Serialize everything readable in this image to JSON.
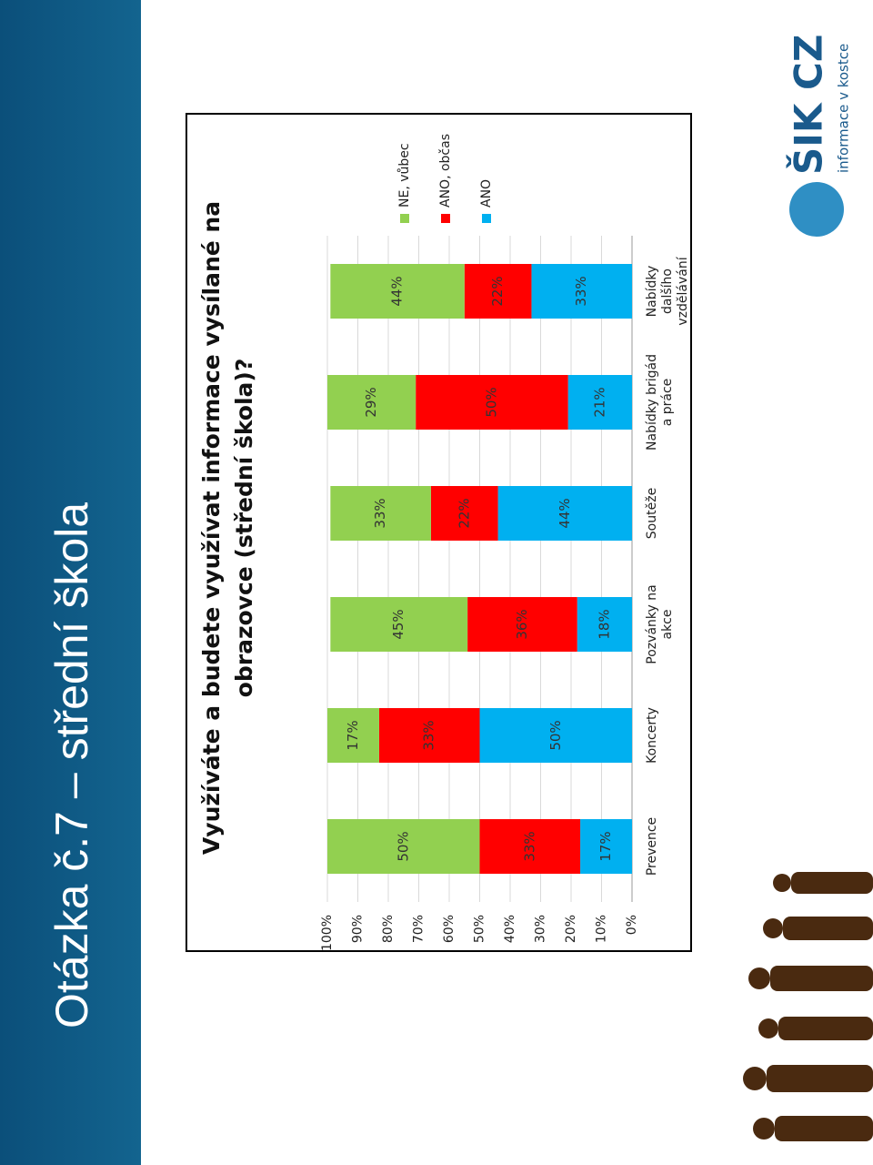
{
  "slide_title": "Otázka č.7 – střední škola",
  "logo": {
    "name": "ŠIK CZ",
    "tagline": "informace v kostce"
  },
  "chart_data": {
    "type": "stacked_bar",
    "title": "Využíváte a budete využívat informace vysílané na obrazovce (střední škola)?",
    "categories": [
      "Prevence",
      "Koncerty",
      "Pozvánky na akce",
      "Soutěže",
      "Nabídky brigád a práce",
      "Nabídky dalšího vzdělávání"
    ],
    "series": [
      {
        "name": "ANO",
        "color": "#00b0f0",
        "values": [
          17,
          50,
          18,
          44,
          21,
          33
        ],
        "value_labels": [
          "17%",
          "50%",
          "18%",
          "44%",
          "21%",
          "33%"
        ]
      },
      {
        "name": "ANO, občas",
        "color": "#ff0000",
        "values": [
          33,
          33,
          36,
          22,
          50,
          22
        ],
        "value_labels": [
          "33%",
          "33%",
          "36%",
          "22%",
          "50%",
          "22%"
        ]
      },
      {
        "name": "NE, vůbec",
        "color": "#92d050",
        "values": [
          50,
          17,
          45,
          33,
          29,
          44
        ],
        "value_labels": [
          "50%",
          "17%",
          "45%",
          "33%",
          "29%",
          "44%"
        ]
      }
    ],
    "ylim": [
      0,
      100
    ],
    "yticks": [
      {
        "value": 0,
        "label": "0%"
      },
      {
        "value": 10,
        "label": "10%"
      },
      {
        "value": 20,
        "label": "20%"
      },
      {
        "value": 30,
        "label": "30%"
      },
      {
        "value": 40,
        "label": "40%"
      },
      {
        "value": 50,
        "label": "50%"
      },
      {
        "value": 60,
        "label": "60%"
      },
      {
        "value": 70,
        "label": "70%"
      },
      {
        "value": 80,
        "label": "80%"
      },
      {
        "value": 90,
        "label": "90%"
      },
      {
        "value": 100,
        "label": "100%"
      }
    ],
    "grid": true
  }
}
